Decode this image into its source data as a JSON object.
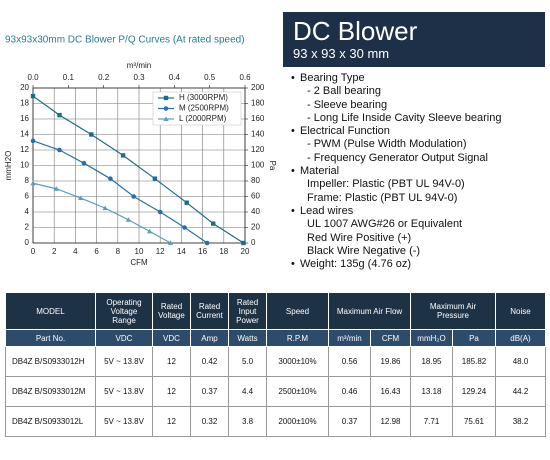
{
  "chart_title": "93x93x30mm DC Blower P/Q Curves (At rated speed)",
  "chart_data": {
    "type": "line",
    "x_label": "CFM",
    "y_label": "mmH2O",
    "y2_label": "Pa",
    "x2_label": "m³/min",
    "xlim": [
      0,
      20
    ],
    "xticks": [
      0,
      2,
      4,
      6,
      8,
      10,
      12,
      14,
      16,
      18,
      20
    ],
    "ylim": [
      0,
      20
    ],
    "yticks": [
      0,
      2,
      4,
      6,
      8,
      10,
      12,
      14,
      16,
      18,
      20
    ],
    "y2lim": [
      0,
      200
    ],
    "y2ticks": [
      0,
      20,
      40,
      60,
      80,
      100,
      120,
      140,
      160,
      180,
      200
    ],
    "x2lim": [
      0,
      0.6
    ],
    "x2ticks": [
      {
        "value": 0,
        "label": "0.0"
      },
      0.1,
      0.2,
      0.3,
      0.4,
      0.5,
      0.6
    ],
    "grid": true,
    "legend": "upper right",
    "series": [
      {
        "name": "H (3000RPM)",
        "color": "#1f6b8a",
        "marker": "square",
        "x": [
          0,
          2.5,
          5.5,
          8.5,
          11.5,
          14.5,
          17,
          19.86
        ],
        "values": [
          18.95,
          16.5,
          14,
          11.3,
          8.3,
          5.2,
          2.5,
          0
        ]
      },
      {
        "name": "M (2500RPM)",
        "color": "#2a6fa8",
        "marker": "circle",
        "x": [
          0,
          2.5,
          4.8,
          7.3,
          9.5,
          12,
          14.3,
          16.43
        ],
        "values": [
          13.18,
          12,
          10.3,
          8.3,
          6,
          4,
          2,
          0
        ]
      },
      {
        "name": "L (2000RPM)",
        "color": "#5a9dbd",
        "marker": "triangle",
        "x": [
          0,
          2.2,
          4.5,
          6.8,
          9,
          11,
          12.98
        ],
        "values": [
          7.71,
          7,
          5.8,
          4.5,
          3,
          1.5,
          0
        ]
      }
    ]
  },
  "product": {
    "title": "DC Blower",
    "subtitle": "93 x 93 x 30 mm"
  },
  "features": [
    {
      "text": "Bearing Type",
      "sub": [
        "- 2 Ball bearing",
        "- Sleeve bearing",
        "- Long Life Inside Cavity Sleeve bearing"
      ]
    },
    {
      "text": "Electrical Function",
      "sub": [
        "- PWM (Pulse Width Modulation)",
        "- Frequency Generator Output Signal"
      ]
    },
    {
      "text": "Material",
      "sub": [
        "Impeller: Plastic (PBT UL 94V-0)",
        "Frame: Plastic (PBT UL 94V-0)"
      ]
    },
    {
      "text": "Lead wires",
      "sub": [
        "UL 1007 AWG#26 or Equivalent",
        "Red Wire Positive (+)",
        "Black Wire Negative (-)"
      ]
    },
    {
      "text": "Weight: 135g (4.76 oz)",
      "sub": []
    }
  ],
  "table": {
    "header": [
      "MODEL",
      "Operating Voltage Range",
      "Rated Voltage",
      "Rated Current",
      "Rated Input Power",
      "Speed",
      "Maximum Air Flow",
      "Maximum Air Pressure",
      "Noise"
    ],
    "units": [
      "Part No.",
      "VDC",
      "VDC",
      "Amp",
      "Watts",
      "R.P.M",
      "m³/min",
      "CFM",
      "mmH₂O",
      "Pa",
      "dB(A)"
    ],
    "rows": [
      [
        "DB4Z B/S0933012H",
        "5V ~ 13.8V",
        "12",
        "0.42",
        "5.0",
        "3000±10%",
        "0.56",
        "19.86",
        "18.95",
        "185.82",
        "48.0"
      ],
      [
        "DB4Z B/S0933012M",
        "5V ~ 13.8V",
        "12",
        "0.37",
        "4.4",
        "2500±10%",
        "0.46",
        "16.43",
        "13.18",
        "129.24",
        "44.2"
      ],
      [
        "DB4Z B/S0933012L",
        "5V ~ 13.8V",
        "12",
        "0.32",
        "3.8",
        "2000±10%",
        "0.37",
        "12.98",
        "7.71",
        "75.61",
        "38.2"
      ]
    ]
  }
}
